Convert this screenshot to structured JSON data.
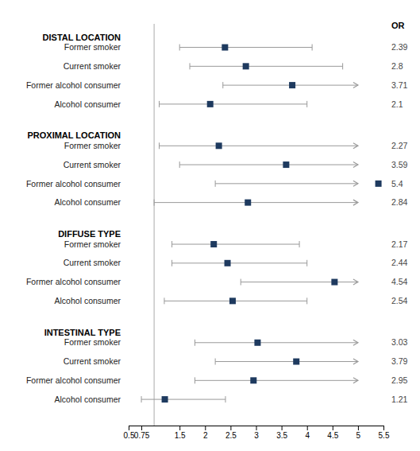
{
  "chart_data": {
    "type": "forest",
    "value_header": "OR",
    "xlim": [
      0.5,
      5.5
    ],
    "xticks": [
      0.5,
      0.75,
      1.5,
      2,
      2.5,
      3,
      3.5,
      4,
      4.5,
      5,
      5.5
    ],
    "ref_line": 1,
    "color": "#1e3a5f",
    "data_labels": true,
    "groups": [
      {
        "title": "DISTAL LOCATION",
        "categories": [
          "Former smoker",
          "Current smoker",
          "Former alcohol consumer",
          "Alcohol consumer"
        ],
        "values": [
          2.39,
          2.8,
          3.71,
          2.1
        ],
        "ci_low": [
          1.5,
          1.7,
          2.35,
          1.1
        ],
        "ci_high": [
          4.1,
          4.7,
          5.0,
          4.0
        ],
        "arrow": [
          false,
          false,
          true,
          false
        ]
      },
      {
        "title": "PROXIMAL LOCATION",
        "categories": [
          "Former smoker",
          "Current smoker",
          "Former alcohol consumer",
          "Alcohol consumer"
        ],
        "values": [
          2.27,
          3.59,
          5.4,
          2.84
        ],
        "ci_low": [
          1.1,
          1.5,
          2.2,
          1.0
        ],
        "ci_high": [
          5.0,
          5.0,
          5.0,
          5.0
        ],
        "arrow": [
          true,
          true,
          true,
          true
        ]
      },
      {
        "title": "DIFFUSE TYPE",
        "categories": [
          "Former smoker",
          "Current smoker",
          "Former alcohol consumer",
          "Alcohol consumer"
        ],
        "values": [
          2.17,
          2.44,
          4.54,
          2.54
        ],
        "ci_low": [
          1.35,
          1.35,
          2.7,
          1.2
        ],
        "ci_high": [
          3.85,
          4.0,
          5.0,
          4.0
        ],
        "arrow": [
          false,
          false,
          true,
          false
        ]
      },
      {
        "title": "INTESTINAL TYPE",
        "categories": [
          "Former smoker",
          "Current smoker",
          "Former alcohol consumer",
          "Alcohol consumer"
        ],
        "values": [
          3.03,
          3.79,
          2.95,
          1.21
        ],
        "ci_low": [
          1.8,
          2.2,
          1.8,
          0.75
        ],
        "ci_high": [
          5.0,
          5.0,
          5.0,
          2.4
        ],
        "arrow": [
          true,
          true,
          true,
          false
        ]
      }
    ]
  }
}
